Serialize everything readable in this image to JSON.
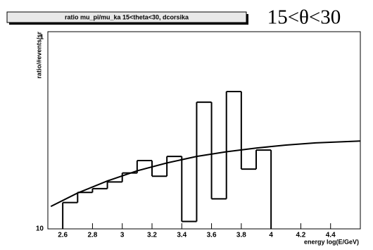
{
  "chart_data": {
    "type": "histogram",
    "title": "ratio mu_pi/mu_ka 15<theta<30, dcorsika",
    "annotation": "15<θ<30",
    "x_label": "energy log(E/GeV)",
    "y_label": "ratio/#events/sr",
    "bins": [
      2.6,
      2.7,
      2.8,
      2.9,
      3.0,
      3.1,
      3.2,
      3.3,
      3.4,
      3.5,
      3.6,
      3.7,
      3.8,
      3.9,
      4.0
    ],
    "values": [
      0.136,
      0.153,
      0.16,
      0.173,
      0.192,
      0.222,
      0.185,
      0.233,
      0.109,
      0.439,
      0.142,
      0.497,
      0.201,
      0.251
    ],
    "color": "#000000",
    "fit": {
      "x": [
        2.52,
        2.7,
        2.9,
        3.1,
        3.3,
        3.5,
        3.7,
        3.9,
        4.1,
        4.3,
        4.6
      ],
      "values": [
        0.13,
        0.152,
        0.175,
        0.197,
        0.216,
        0.233,
        0.246,
        0.257,
        0.266,
        0.273,
        0.279
      ],
      "color": "#000000"
    },
    "xlim": [
      2.5,
      4.6
    ],
    "xticks": [
      2.6,
      2.8,
      3,
      3.2,
      3.4,
      3.6,
      3.8,
      4,
      4.2,
      4.4
    ],
    "ylim": [
      0.1,
      1
    ],
    "yticks": [
      {
        "value": 0.1,
        "label": "10"
      },
      1
    ],
    "log_y": true
  }
}
